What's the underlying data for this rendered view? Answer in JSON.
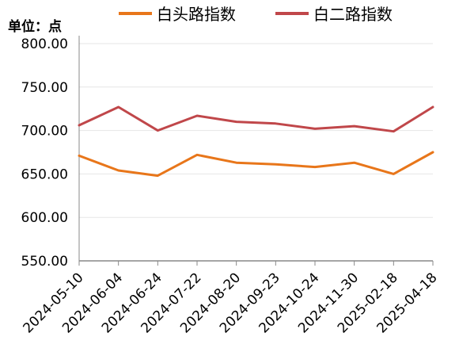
{
  "chart_data": {
    "type": "line",
    "unit_label": "单位：点",
    "x": [
      "2024-05-10",
      "2024-06-04",
      "2024-06-24",
      "2024-07-22",
      "2024-08-20",
      "2024-09-23",
      "2024-10-24",
      "2024-11-30",
      "2025-02-18",
      "2025-04-18"
    ],
    "series": [
      {
        "name": "白头路指数",
        "color": "#E8761A",
        "values": [
          671,
          654,
          648,
          672,
          663,
          661,
          658,
          663,
          650,
          675
        ]
      },
      {
        "name": "白二路指数",
        "color": "#C0474A",
        "values": [
          706,
          727,
          700,
          717,
          710,
          708,
          702,
          705,
          699,
          727
        ]
      }
    ],
    "ylim": [
      550,
      800
    ],
    "yticks": [
      "550.00",
      "600.00",
      "650.00",
      "700.00",
      "750.00",
      "800.00"
    ],
    "grid": true,
    "legend_position": "top"
  }
}
